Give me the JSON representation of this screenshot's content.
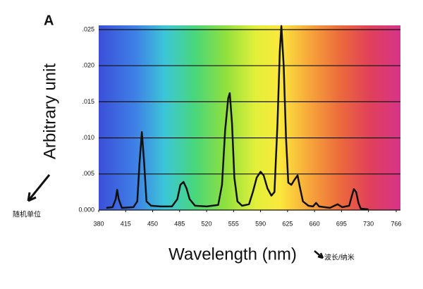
{
  "chart_data": {
    "type": "line",
    "panel_label": "A",
    "y_label": "Arbitrary unit",
    "x_label": "Wavelength (nm)",
    "annotations": [
      "随机单位",
      "波长/纳米"
    ],
    "x": [
      390,
      398,
      402,
      404,
      406,
      410,
      425,
      430,
      433,
      436,
      439,
      442,
      448,
      460,
      475,
      482,
      486,
      490,
      494,
      498,
      505,
      520,
      535,
      540,
      544,
      548,
      550,
      553,
      556,
      560,
      566,
      575,
      580,
      585,
      590,
      594,
      599,
      604,
      608,
      612,
      615,
      617,
      620,
      623,
      626,
      630,
      634,
      638,
      641,
      645,
      652,
      658,
      662,
      666,
      680,
      690,
      696,
      705,
      708,
      711,
      714,
      717,
      720,
      730
    ],
    "values": [
      0.0003,
      0.0004,
      0.0015,
      0.0028,
      0.0015,
      0.0003,
      0.0004,
      0.0012,
      0.0065,
      0.0108,
      0.0065,
      0.0012,
      0.0006,
      0.0005,
      0.0005,
      0.0015,
      0.0035,
      0.0039,
      0.003,
      0.0015,
      0.0006,
      0.0005,
      0.0007,
      0.0035,
      0.011,
      0.0155,
      0.0162,
      0.012,
      0.0045,
      0.0012,
      0.0006,
      0.0008,
      0.0025,
      0.0045,
      0.0053,
      0.0048,
      0.003,
      0.002,
      0.0025,
      0.012,
      0.022,
      0.0255,
      0.02,
      0.01,
      0.0038,
      0.0035,
      0.0042,
      0.0048,
      0.0032,
      0.0012,
      0.0006,
      0.0005,
      0.001,
      0.0005,
      0.0003,
      0.0008,
      0.0004,
      0.0006,
      0.0018,
      0.0029,
      0.0025,
      0.001,
      0.0002,
      0.0001
    ],
    "color": "#111111",
    "xlim": [
      380,
      766
    ],
    "xticks": [
      380,
      415,
      450,
      485,
      520,
      555,
      590,
      625,
      660,
      695,
      730,
      766
    ],
    "ylim": [
      0,
      0.025
    ],
    "yticks": [
      {
        "value": 0,
        "label": "0.000"
      },
      {
        "value": 0.005,
        "label": ".005"
      },
      {
        "value": 0.01,
        "label": ".010"
      },
      {
        "value": 0.015,
        "label": ".015"
      },
      {
        "value": 0.02,
        "label": ".020"
      },
      {
        "value": 0.025,
        "label": ".025"
      }
    ],
    "grid": true
  }
}
